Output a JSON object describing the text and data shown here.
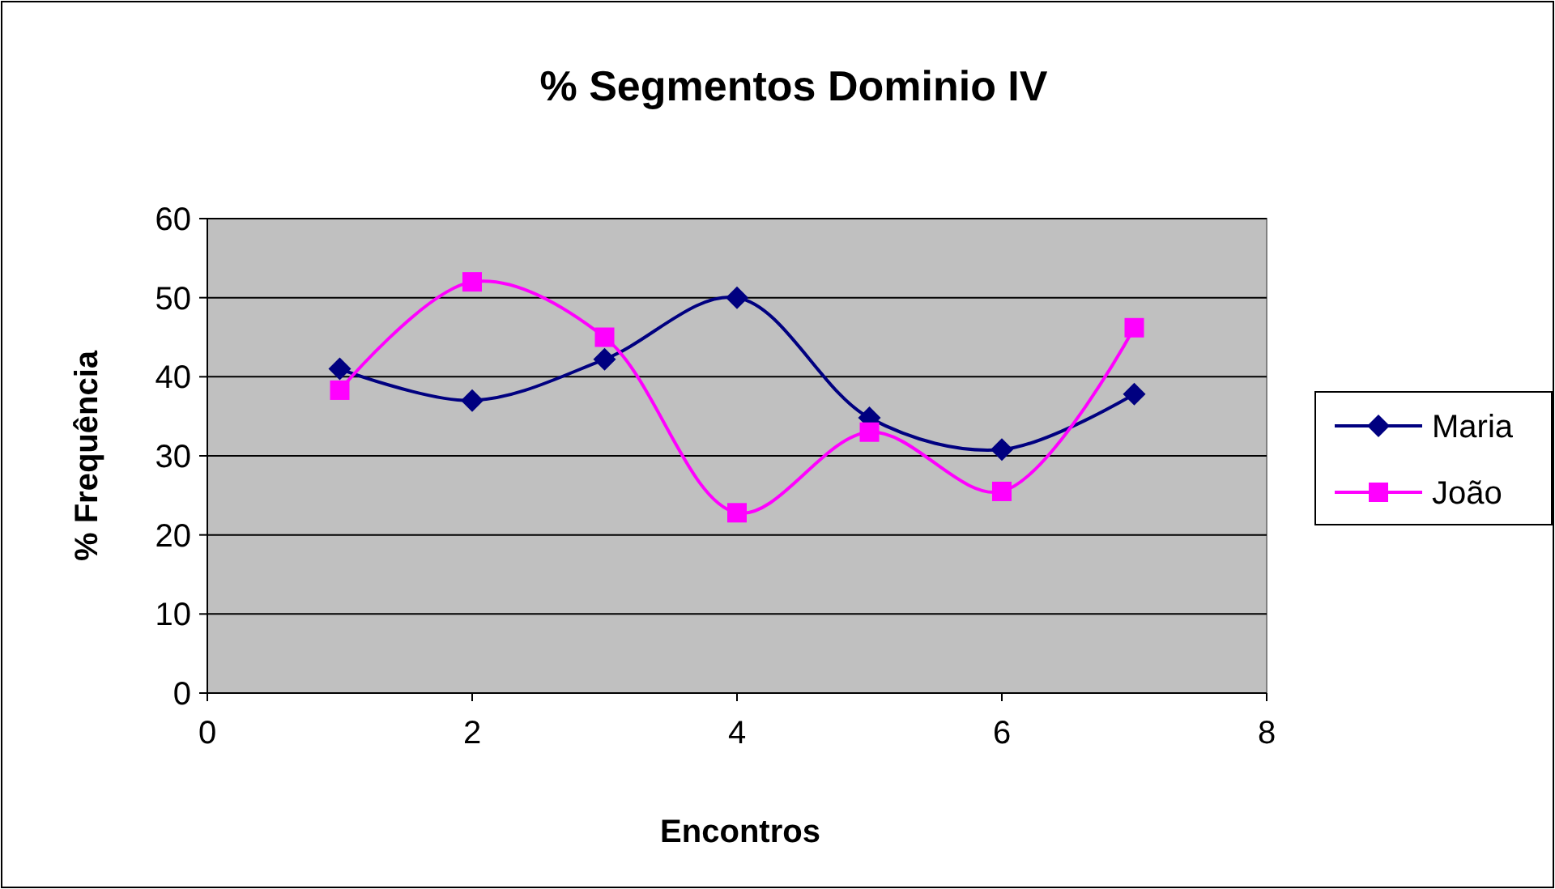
{
  "chart_data": {
    "type": "line",
    "title": "% Segmentos Dominio IV",
    "xlabel": "Encontros",
    "ylabel": "% Frequência",
    "x": [
      1,
      2,
      3,
      4,
      5,
      6,
      7
    ],
    "series": [
      {
        "name": "Maria",
        "color": "#000080",
        "marker": "diamond",
        "values": [
          41,
          37,
          42.2,
          50,
          34.8,
          30.8,
          37.8
        ]
      },
      {
        "name": "João",
        "color": "#ff00ff",
        "marker": "square",
        "values": [
          38.3,
          52,
          45,
          22.8,
          33,
          25.5,
          46.2
        ]
      }
    ],
    "xlim": [
      0,
      8
    ],
    "xticks": [
      0,
      2,
      4,
      6,
      8
    ],
    "ylim": [
      0,
      60
    ],
    "yticks": [
      0,
      10,
      20,
      30,
      40,
      50,
      60
    ],
    "grid": "y",
    "legend": "right"
  }
}
